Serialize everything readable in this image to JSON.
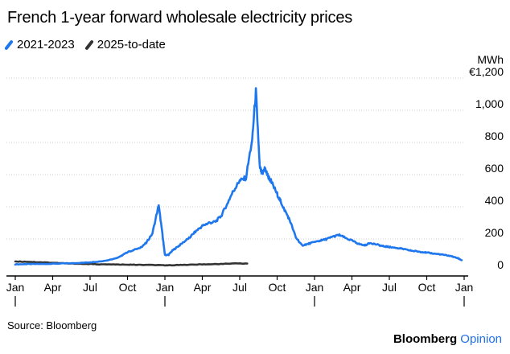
{
  "chart_data": {
    "type": "line",
    "title": "French 1-year forward wholesale electricity prices",
    "ylabel_unit": "MWh",
    "ylim": [
      0,
      1200
    ],
    "y_ticks": [
      {
        "value": 0,
        "label": "0"
      },
      {
        "value": 200,
        "label": "200"
      },
      {
        "value": 400,
        "label": "400"
      },
      {
        "value": 600,
        "label": "600"
      },
      {
        "value": 800,
        "label": "800"
      },
      {
        "value": 1000,
        "label": "1,000"
      },
      {
        "value": 1200,
        "label": "€1,200"
      }
    ],
    "x_unit": "months from Jan 2021",
    "xlim": [
      0,
      36
    ],
    "x_ticks": [
      {
        "value": 0,
        "label": "Jan"
      },
      {
        "value": 3,
        "label": "Apr"
      },
      {
        "value": 6,
        "label": "Jul"
      },
      {
        "value": 9,
        "label": "Oct"
      },
      {
        "value": 12,
        "label": "Jan"
      },
      {
        "value": 15,
        "label": "Apr"
      },
      {
        "value": 18,
        "label": "Jul"
      },
      {
        "value": 21,
        "label": "Oct"
      },
      {
        "value": 24,
        "label": "Jan"
      },
      {
        "value": 27,
        "label": "Apr"
      },
      {
        "value": 30,
        "label": "Jul"
      },
      {
        "value": 33,
        "label": "Oct"
      },
      {
        "value": 36,
        "label": "Jan"
      }
    ],
    "series": [
      {
        "name": "2021-2023",
        "color": "#1f77ee",
        "x": [
          0,
          1,
          2,
          3,
          4,
          5,
          6,
          7,
          8,
          8.5,
          9,
          10,
          10.5,
          11,
          11.5,
          11.8,
          12,
          12.3,
          12.6,
          13,
          13.5,
          14,
          14.5,
          15,
          15.5,
          16,
          16.5,
          17,
          17.5,
          18,
          18.5,
          19,
          19.3,
          19.6,
          19.8,
          20,
          20.2,
          20.5,
          21,
          21.3,
          21.6,
          22,
          22.5,
          23,
          23.5,
          24,
          24.5,
          25,
          25.5,
          26,
          26.5,
          27,
          27.5,
          28,
          28.5,
          29,
          29.5,
          30,
          30.5,
          31,
          31.5,
          32,
          32.5,
          33,
          33.5,
          34,
          34.5,
          35,
          35.5,
          35.8
        ],
        "values": [
          42,
          44,
          44,
          46,
          48,
          50,
          55,
          62,
          78,
          95,
          118,
          145,
          175,
          235,
          410,
          230,
          100,
          102,
          128,
          150,
          180,
          210,
          250,
          280,
          300,
          305,
          340,
          420,
          500,
          560,
          580,
          820,
          1120,
          650,
          600,
          640,
          600,
          560,
          480,
          430,
          380,
          320,
          210,
          160,
          170,
          180,
          190,
          200,
          215,
          225,
          205,
          190,
          170,
          160,
          175,
          165,
          155,
          150,
          145,
          140,
          130,
          125,
          120,
          115,
          110,
          105,
          100,
          92,
          80,
          68
        ]
      },
      {
        "name": "2025-to-date",
        "color": "#333333",
        "x": [
          0,
          1,
          2,
          3,
          4,
          5,
          6,
          7,
          8,
          9,
          10,
          11,
          12,
          13,
          14,
          15,
          16,
          17,
          18,
          18.6
        ],
        "values": [
          60,
          58,
          55,
          52,
          48,
          46,
          44,
          42,
          41,
          40,
          39,
          38,
          36,
          38,
          40,
          42,
          44,
          46,
          48,
          47
        ]
      }
    ]
  },
  "source": "Source: Bloomberg",
  "brand": {
    "name": "Bloomberg",
    "suffix": "Opinion"
  }
}
